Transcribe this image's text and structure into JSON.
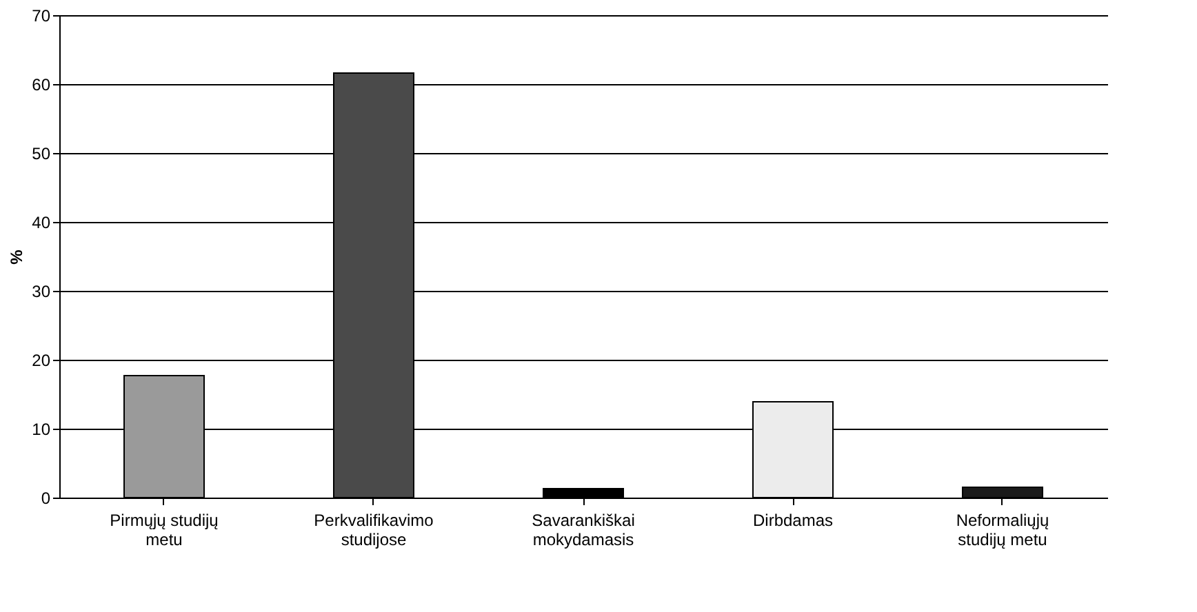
{
  "chart_data": {
    "type": "bar",
    "ylabel": "%",
    "categories": [
      "Pirmųjų studijų metu",
      "Perkvalifikavimo studijose",
      "Savarankiškai mokydamasis",
      "Dirbdamas",
      "Neformaliųjų studijų metu"
    ],
    "values": [
      17.7,
      61.6,
      1.3,
      13.9,
      1.5
    ],
    "colors": [
      "#9a9a9a",
      "#4a4a4a",
      "#000000",
      "#ececec",
      "#1a1a1a"
    ],
    "ylim": [
      0,
      70
    ],
    "yticks": [
      0,
      10,
      20,
      30,
      40,
      50,
      60,
      70
    ],
    "grid": "y",
    "legend": false
  }
}
